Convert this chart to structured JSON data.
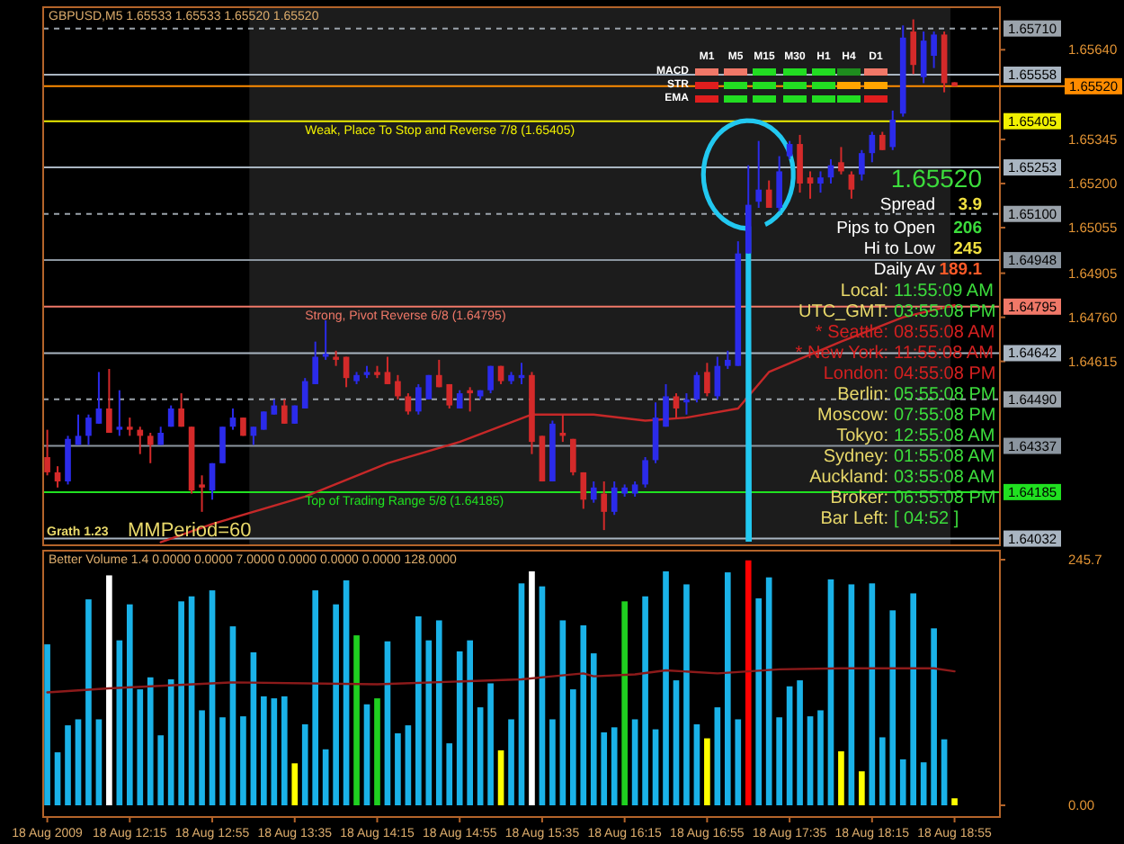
{
  "chart_data": [
    {
      "type": "candlestick",
      "title": "GBPUSD,M5 1.65533 1.65533 1.65520 1.65520",
      "x": [
        "2009-08-18T11:35",
        "2009-08-18T11:40",
        "2009-08-18T11:45",
        "2009-08-18T11:50",
        "2009-08-18T11:55",
        "2009-08-18T12:00",
        "2009-08-18T12:05",
        "2009-08-18T12:10",
        "2009-08-18T12:15",
        "2009-08-18T12:20",
        "2009-08-18T12:25",
        "2009-08-18T12:30",
        "2009-08-18T12:35",
        "2009-08-18T12:40",
        "2009-08-18T12:45",
        "2009-08-18T12:50",
        "2009-08-18T12:55",
        "2009-08-18T13:00",
        "2009-08-18T13:05",
        "2009-08-18T13:10",
        "2009-08-18T13:15",
        "2009-08-18T13:20",
        "2009-08-18T13:25",
        "2009-08-18T13:30",
        "2009-08-18T13:35",
        "2009-08-18T13:40",
        "2009-08-18T13:45",
        "2009-08-18T13:50",
        "2009-08-18T13:55",
        "2009-08-18T14:00",
        "2009-08-18T14:05",
        "2009-08-18T14:10",
        "2009-08-18T14:15",
        "2009-08-18T14:20",
        "2009-08-18T14:25",
        "2009-08-18T14:30",
        "2009-08-18T14:35",
        "2009-08-18T14:40",
        "2009-08-18T14:45",
        "2009-08-18T14:50",
        "2009-08-18T14:55",
        "2009-08-18T15:00",
        "2009-08-18T15:05",
        "2009-08-18T15:10",
        "2009-08-18T15:15",
        "2009-08-18T15:20",
        "2009-08-18T15:25",
        "2009-08-18T15:30",
        "2009-08-18T15:35",
        "2009-08-18T15:40",
        "2009-08-18T15:45",
        "2009-08-18T15:50",
        "2009-08-18T15:55",
        "2009-08-18T16:00",
        "2009-08-18T16:05",
        "2009-08-18T16:10",
        "2009-08-18T16:15",
        "2009-08-18T16:20",
        "2009-08-18T16:25",
        "2009-08-18T16:30",
        "2009-08-18T16:35",
        "2009-08-18T16:40",
        "2009-08-18T16:45",
        "2009-08-18T16:50",
        "2009-08-18T16:55",
        "2009-08-18T17:00",
        "2009-08-18T17:05",
        "2009-08-18T17:10",
        "2009-08-18T17:15",
        "2009-08-18T17:20",
        "2009-08-18T17:25",
        "2009-08-18T17:30",
        "2009-08-18T17:35",
        "2009-08-18T17:40",
        "2009-08-18T17:45",
        "2009-08-18T17:50",
        "2009-08-18T17:55",
        "2009-08-18T18:00",
        "2009-08-18T18:05",
        "2009-08-18T18:10",
        "2009-08-18T18:15",
        "2009-08-18T18:20",
        "2009-08-18T18:25",
        "2009-08-18T18:30",
        "2009-08-18T18:35",
        "2009-08-18T18:40",
        "2009-08-18T18:45",
        "2009-08-18T18:50",
        "2009-08-18T18:55"
      ],
      "ohlc": [
        [
          1.643,
          1.6439,
          1.6424,
          1.6425
        ],
        [
          1.6425,
          1.6427,
          1.642,
          1.6422
        ],
        [
          1.6422,
          1.6437,
          1.6421,
          1.6436
        ],
        [
          1.6434,
          1.6444,
          1.6434,
          1.6437
        ],
        [
          1.6437,
          1.6444,
          1.6434,
          1.6443
        ],
        [
          1.6441,
          1.6458,
          1.6441,
          1.6446
        ],
        [
          1.6446,
          1.6459,
          1.6438,
          1.6438
        ],
        [
          1.6439,
          1.6452,
          1.6437,
          1.644
        ],
        [
          1.644,
          1.6443,
          1.6437,
          1.6439
        ],
        [
          1.6439,
          1.644,
          1.6431,
          1.6437
        ],
        [
          1.6437,
          1.6438,
          1.6428,
          1.6434
        ],
        [
          1.6434,
          1.644,
          1.6434,
          1.6438
        ],
        [
          1.644,
          1.6447,
          1.644,
          1.6446
        ],
        [
          1.6446,
          1.6451,
          1.644,
          1.644
        ],
        [
          1.644,
          1.644,
          1.6418,
          1.6419
        ],
        [
          1.6421,
          1.6424,
          1.6412,
          1.642
        ],
        [
          1.6419,
          1.6428,
          1.6416,
          1.6428
        ],
        [
          1.6428,
          1.644,
          1.6428,
          1.644
        ],
        [
          1.644,
          1.6446,
          1.6439,
          1.6443
        ],
        [
          1.6443,
          1.6443,
          1.6437,
          1.6437
        ],
        [
          1.6437,
          1.644,
          1.6434,
          1.644
        ],
        [
          1.6439,
          1.6445,
          1.6439,
          1.6445
        ],
        [
          1.6444,
          1.6449,
          1.6444,
          1.6447
        ],
        [
          1.6447,
          1.6449,
          1.6441,
          1.6441
        ],
        [
          1.6441,
          1.6447,
          1.6441,
          1.6447
        ],
        [
          1.6446,
          1.6456,
          1.6446,
          1.6455
        ],
        [
          1.6454,
          1.6468,
          1.6454,
          1.6463
        ],
        [
          1.6463,
          1.6475,
          1.6462,
          1.6464
        ],
        [
          1.6463,
          1.6465,
          1.646,
          1.6462
        ],
        [
          1.6463,
          1.6463,
          1.6453,
          1.6456
        ],
        [
          1.6455,
          1.6458,
          1.6454,
          1.6457
        ],
        [
          1.6457,
          1.646,
          1.6456,
          1.6458
        ],
        [
          1.6458,
          1.646,
          1.6456,
          1.6457
        ],
        [
          1.6458,
          1.6463,
          1.6454,
          1.6454
        ],
        [
          1.6455,
          1.6457,
          1.6449,
          1.645
        ],
        [
          1.645,
          1.6451,
          1.6444,
          1.6445
        ],
        [
          1.6445,
          1.6454,
          1.6444,
          1.6453
        ],
        [
          1.6449,
          1.6457,
          1.6449,
          1.6457
        ],
        [
          1.6457,
          1.6462,
          1.6453,
          1.6453
        ],
        [
          1.6454,
          1.6454,
          1.6446,
          1.6447
        ],
        [
          1.6446,
          1.6452,
          1.6446,
          1.6451
        ],
        [
          1.6452,
          1.6453,
          1.6445,
          1.6451
        ],
        [
          1.645,
          1.6452,
          1.6449,
          1.6452
        ],
        [
          1.6452,
          1.646,
          1.6451,
          1.646
        ],
        [
          1.646,
          1.646,
          1.6454,
          1.6455
        ],
        [
          1.6455,
          1.6458,
          1.6454,
          1.6457
        ],
        [
          1.6456,
          1.6461,
          1.6454,
          1.6457
        ],
        [
          1.6457,
          1.6458,
          1.6431,
          1.6435
        ],
        [
          1.6437,
          1.6437,
          1.6422,
          1.6422
        ],
        [
          1.6422,
          1.6442,
          1.6422,
          1.6441
        ],
        [
          1.6438,
          1.6444,
          1.6435,
          1.6437
        ],
        [
          1.6436,
          1.6436,
          1.6424,
          1.6425
        ],
        [
          1.6425,
          1.6425,
          1.6413,
          1.6416
        ],
        [
          1.6416,
          1.6422,
          1.6415,
          1.642
        ],
        [
          1.6418,
          1.6422,
          1.6406,
          1.6412
        ],
        [
          1.6412,
          1.6422,
          1.6411,
          1.642
        ],
        [
          1.6418,
          1.6421,
          1.6417,
          1.642
        ],
        [
          1.6418,
          1.6422,
          1.6417,
          1.6421
        ],
        [
          1.6421,
          1.643,
          1.642,
          1.6429
        ],
        [
          1.6429,
          1.6448,
          1.6428,
          1.6443
        ],
        [
          1.644,
          1.6454,
          1.644,
          1.645
        ],
        [
          1.645,
          1.6451,
          1.6443,
          1.6446
        ],
        [
          1.6448,
          1.6451,
          1.6444,
          1.6449
        ],
        [
          1.6449,
          1.6458,
          1.6448,
          1.6457
        ],
        [
          1.6458,
          1.6461,
          1.645,
          1.6451
        ],
        [
          1.645,
          1.6463,
          1.6449,
          1.646
        ],
        [
          1.646,
          1.6465,
          1.6459,
          1.6462
        ],
        [
          1.646,
          1.6501,
          1.646,
          1.6497
        ],
        [
          1.6497,
          1.6526,
          1.6497,
          1.6513
        ],
        [
          1.6514,
          1.6534,
          1.6512,
          1.6518
        ],
        [
          1.6518,
          1.6521,
          1.6512,
          1.6512
        ],
        [
          1.6512,
          1.6529,
          1.6511,
          1.6524
        ],
        [
          1.6529,
          1.6534,
          1.6528,
          1.6533
        ],
        [
          1.6533,
          1.6536,
          1.6517,
          1.652
        ],
        [
          1.6522,
          1.6524,
          1.6515,
          1.652
        ],
        [
          1.652,
          1.6524,
          1.6517,
          1.6522
        ],
        [
          1.6522,
          1.6528,
          1.652,
          1.6526
        ],
        [
          1.6527,
          1.6532,
          1.6523,
          1.6524
        ],
        [
          1.6523,
          1.6524,
          1.6515,
          1.6518
        ],
        [
          1.6523,
          1.6531,
          1.6521,
          1.653
        ],
        [
          1.653,
          1.6537,
          1.6527,
          1.6536
        ],
        [
          1.6536,
          1.6537,
          1.6531,
          1.6531
        ],
        [
          1.6532,
          1.6544,
          1.6531,
          1.6541
        ],
        [
          1.6543,
          1.6572,
          1.6542,
          1.6568
        ],
        [
          1.657,
          1.6574,
          1.6556,
          1.6559
        ],
        [
          1.6555,
          1.657,
          1.6553,
          1.6567
        ],
        [
          1.6562,
          1.657,
          1.6558,
          1.6569
        ],
        [
          1.6569,
          1.657,
          1.655,
          1.6553
        ],
        [
          1.65533,
          1.65533,
          1.6552,
          1.6552
        ]
      ],
      "series": [
        {
          "type": "line",
          "color": "#c62828",
          "x": [
            "2009-08-18T12:30",
            "2009-08-18T12:55",
            "2009-08-18T13:40",
            "2009-08-18T14:20",
            "2009-08-18T14:55",
            "2009-08-18T15:30",
            "2009-08-18T16:00",
            "2009-08-18T16:25",
            "2009-08-18T16:45",
            "2009-08-18T17:10",
            "2009-08-18T17:25",
            "2009-08-18T18:00",
            "2009-08-18T18:30",
            "2009-08-18T18:55"
          ],
          "values": [
            1.6402,
            1.6408,
            1.6417,
            1.6428,
            1.6435,
            1.6444,
            1.6444,
            1.6442,
            1.6443,
            1.6446,
            1.6458,
            1.6468,
            1.6476,
            1.648
          ]
        }
      ],
      "xlim": [
        "2009-08-18T11:33",
        "2009-08-18T19:17"
      ],
      "ylim": [
        1.6401,
        1.6578
      ],
      "yticks": [
        {
          "value": 1.6564,
          "label": "1.65640"
        },
        1.65345,
        {
          "value": 1.652,
          "label": "1.65200"
        },
        1.65055,
        1.64905,
        {
          "value": 1.6476,
          "label": "1.64760"
        },
        1.64615
      ],
      "ref_lines": [
        {
          "axis": "y",
          "value": 1.6571,
          "label": "1.65710",
          "color": "#9ba3ab",
          "line_style": "dashed"
        },
        {
          "axis": "y",
          "value": 1.65558,
          "label": "1.65558",
          "color": "#a9b5c1"
        },
        {
          "axis": "y",
          "value": 1.6552,
          "label": "1.65520",
          "color": "#ff8c00"
        },
        {
          "axis": "y",
          "value": 1.65405,
          "label": "1.65405",
          "color": "#f0f000"
        },
        {
          "axis": "y",
          "value": 1.65253,
          "label": "1.65253",
          "color": "#a9b5c1"
        },
        {
          "axis": "y",
          "value": 1.651,
          "label": "1.65100",
          "color": "#9ba3ab",
          "line_style": "dashed"
        },
        {
          "axis": "y",
          "value": 1.64948,
          "label": "1.64948",
          "color": "#8b959f"
        },
        {
          "axis": "y",
          "value": 1.64795,
          "label": "1.64795",
          "color": "#f07868"
        },
        {
          "axis": "y",
          "value": 1.64642,
          "label": "1.64642",
          "color": "#a9b5c1"
        },
        {
          "axis": "y",
          "value": 1.6449,
          "label": "1.64490",
          "color": "#9ba3ab",
          "line_style": "dashed"
        },
        {
          "axis": "y",
          "value": 1.64337,
          "label": "1.64337",
          "color": "#8b959f"
        },
        {
          "axis": "y",
          "value": 1.64185,
          "label": "1.64185",
          "color": "#20e020"
        },
        {
          "axis": "y",
          "value": 1.64032,
          "label": "1.64032",
          "color": "#a9b5c1"
        }
      ],
      "bands": [
        {
          "axis": "x",
          "from": "2009-08-18T13:13",
          "to": "2009-08-18T18:53",
          "color": "#1c1c1c"
        }
      ],
      "annotations": [
        "Grath 1.23",
        "MMPeriod=60",
        "1.65520",
        "Spread",
        "3.9",
        "Pips to Open",
        "206",
        "Hi to Low",
        "245",
        "Daily Av",
        "189.1",
        "Local:",
        "11:55:09 AM",
        "UTC_GMT:",
        "03:55:08 PM",
        "* Seattle:",
        "08:55:08 AM",
        "* New York:",
        "11:55:08 AM",
        "London:",
        "04:55:08 PM",
        "Berlin:",
        "05:55:08 PM",
        "Moscow:",
        "07:55:08 PM",
        "Tokyo:",
        "12:55:08 AM",
        "Sydney:",
        "01:55:08 AM",
        "Auckland:",
        "03:55:08 AM",
        "Broker:",
        "06:55:08 PM",
        "Bar Left:",
        "[ 04:52 ]",
        "M1",
        "M5",
        "M15",
        "M30",
        "H1",
        "H4",
        "D1",
        "MACD",
        "STR",
        "EMA",
        {
          "text": "Weak, Place To Stop and Reverse 7/8 (1.65405)",
          "x": "2009-08-18T13:40",
          "y": 1.65405
        },
        {
          "text": "Strong, Pivot Reverse 6/8 (1.64795)",
          "x": "2009-08-18T13:40",
          "y": 1.64795
        },
        {
          "text": "Top of Trading Range 5/8 (1.64185)",
          "x": "2009-08-18T13:40",
          "y": 1.64185
        }
      ],
      "tick_labels": "y"
    },
    {
      "type": "bar",
      "title": "Better Volume 1.4 0.0000 0.0000 7.0000 0.0000 0.0000 0.0000 128.0000",
      "x": [
        "2009-08-18T11:35",
        "2009-08-18T11:40",
        "2009-08-18T11:45",
        "2009-08-18T11:50",
        "2009-08-18T11:55",
        "2009-08-18T12:00",
        "2009-08-18T12:05",
        "2009-08-18T12:10",
        "2009-08-18T12:15",
        "2009-08-18T12:20",
        "2009-08-18T12:25",
        "2009-08-18T12:30",
        "2009-08-18T12:35",
        "2009-08-18T12:40",
        "2009-08-18T12:45",
        "2009-08-18T12:50",
        "2009-08-18T12:55",
        "2009-08-18T13:00",
        "2009-08-18T13:05",
        "2009-08-18T13:10",
        "2009-08-18T13:15",
        "2009-08-18T13:20",
        "2009-08-18T13:25",
        "2009-08-18T13:30",
        "2009-08-18T13:35",
        "2009-08-18T13:40",
        "2009-08-18T13:45",
        "2009-08-18T13:50",
        "2009-08-18T13:55",
        "2009-08-18T14:00",
        "2009-08-18T14:05",
        "2009-08-18T14:10",
        "2009-08-18T14:15",
        "2009-08-18T14:20",
        "2009-08-18T14:25",
        "2009-08-18T14:30",
        "2009-08-18T14:35",
        "2009-08-18T14:40",
        "2009-08-18T14:45",
        "2009-08-18T14:50",
        "2009-08-18T14:55",
        "2009-08-18T15:00",
        "2009-08-18T15:05",
        "2009-08-18T15:10",
        "2009-08-18T15:15",
        "2009-08-18T15:20",
        "2009-08-18T15:25",
        "2009-08-18T15:30",
        "2009-08-18T15:35",
        "2009-08-18T15:40",
        "2009-08-18T15:45",
        "2009-08-18T15:50",
        "2009-08-18T15:55",
        "2009-08-18T16:00",
        "2009-08-18T16:05",
        "2009-08-18T16:10",
        "2009-08-18T16:15",
        "2009-08-18T16:20",
        "2009-08-18T16:25",
        "2009-08-18T16:30",
        "2009-08-18T16:35",
        "2009-08-18T16:40",
        "2009-08-18T16:45",
        "2009-08-18T16:50",
        "2009-08-18T16:55",
        "2009-08-18T17:00",
        "2009-08-18T17:05",
        "2009-08-18T17:10",
        "2009-08-18T17:15",
        "2009-08-18T17:20",
        "2009-08-18T17:25",
        "2009-08-18T17:30",
        "2009-08-18T17:35",
        "2009-08-18T17:40",
        "2009-08-18T17:45",
        "2009-08-18T17:50",
        "2009-08-18T17:55",
        "2009-08-18T18:00",
        "2009-08-18T18:05",
        "2009-08-18T18:10",
        "2009-08-18T18:15",
        "2009-08-18T18:20",
        "2009-08-18T18:25",
        "2009-08-18T18:30",
        "2009-08-18T18:35",
        "2009-08-18T18:40",
        "2009-08-18T18:45",
        "2009-08-18T18:50",
        "2009-08-18T18:55"
      ],
      "series": [
        {
          "type": "bar",
          "values": [
            161,
            53,
            80,
            86,
            206,
            86,
            230,
            165,
            201,
            116,
            128,
            70,
            126,
            204,
            209,
            95,
            215,
            88,
            179,
            89,
            153,
            109,
            107,
            109,
            42,
            81,
            215,
            56,
            201,
            225,
            170,
            101,
            107,
            164,
            72,
            80,
            189,
            165,
            185,
            62,
            154,
            165,
            98,
            122,
            55,
            86,
            222,
            234,
            219,
            86,
            185,
            116,
            180,
            152,
            73,
            78,
            204,
            86,
            209,
            76,
            234,
            125,
            221,
            81,
            67,
            98,
            233,
            86,
            245,
            207,
            228,
            88,
            119,
            125,
            89,
            95,
            226,
            54,
            221,
            34,
            222,
            68,
            195,
            46,
            212,
            43,
            177,
            66,
            7
          ],
          "colors": [
            "#1ab2e8",
            "#1ab2e8",
            "#1ab2e8",
            "#1ab2e8",
            "#1ab2e8",
            "#1ab2e8",
            "#ffffff",
            "#1ab2e8",
            "#1ab2e8",
            "#1ab2e8",
            "#1ab2e8",
            "#1ab2e8",
            "#1ab2e8",
            "#1ab2e8",
            "#1ab2e8",
            "#1ab2e8",
            "#1ab2e8",
            "#1ab2e8",
            "#1ab2e8",
            "#1ab2e8",
            "#1ab2e8",
            "#1ab2e8",
            "#1ab2e8",
            "#1ab2e8",
            "#ffff00",
            "#1ab2e8",
            "#1ab2e8",
            "#1ab2e8",
            "#1ab2e8",
            "#1ab2e8",
            "#20d020",
            "#1ab2e8",
            "#20d020",
            "#1ab2e8",
            "#1ab2e8",
            "#1ab2e8",
            "#1ab2e8",
            "#1ab2e8",
            "#1ab2e8",
            "#1ab2e8",
            "#1ab2e8",
            "#1ab2e8",
            "#1ab2e8",
            "#1ab2e8",
            "#ffff00",
            "#1ab2e8",
            "#1ab2e8",
            "#ffffff",
            "#1ab2e8",
            "#1ab2e8",
            "#1ab2e8",
            "#1ab2e8",
            "#1ab2e8",
            "#1ab2e8",
            "#1ab2e8",
            "#1ab2e8",
            "#20d020",
            "#1ab2e8",
            "#1ab2e8",
            "#1ab2e8",
            "#1ab2e8",
            "#1ab2e8",
            "#1ab2e8",
            "#1ab2e8",
            "#ffff00",
            "#1ab2e8",
            "#1ab2e8",
            "#1ab2e8",
            "#ff0000",
            "#1ab2e8",
            "#1ab2e8",
            "#1ab2e8",
            "#1ab2e8",
            "#1ab2e8",
            "#1ab2e8",
            "#1ab2e8",
            "#1ab2e8",
            "#ffff00",
            "#1ab2e8",
            "#ffff00",
            "#1ab2e8",
            "#1ab2e8",
            "#1ab2e8",
            "#1ab2e8",
            "#1ab2e8",
            "#1ab2e8",
            "#1ab2e8",
            "#1ab2e8",
            "#ffff00"
          ]
        },
        {
          "type": "line",
          "color": "#8c1a1a",
          "x": [
            "2009-08-18T11:35",
            "2009-08-18T12:05",
            "2009-08-18T13:05",
            "2009-08-18T14:15",
            "2009-08-18T15:25",
            "2009-08-18T15:40",
            "2009-08-18T15:55",
            "2009-08-18T16:00",
            "2009-08-18T16:20",
            "2009-08-18T16:35",
            "2009-08-18T17:00",
            "2009-08-18T17:30",
            "2009-08-18T18:00",
            "2009-08-18T18:20",
            "2009-08-18T18:45",
            "2009-08-18T18:55"
          ],
          "values": [
            113,
            117,
            123,
            121,
            126,
            129,
            132,
            129,
            131,
            135,
            132,
            136,
            137,
            137,
            137,
            134
          ]
        }
      ],
      "xlim": [
        "2009-08-18T11:33",
        "2009-08-18T19:17"
      ],
      "xticks": [
        {
          "value": "2009-08-18T11:35",
          "label": "18 Aug 2009"
        },
        {
          "value": "2009-08-18T12:15",
          "label": "18 Aug 12:15"
        },
        {
          "value": "2009-08-18T12:55",
          "label": "18 Aug 12:55"
        },
        {
          "value": "2009-08-18T13:35",
          "label": "18 Aug 13:35"
        },
        {
          "value": "2009-08-18T14:15",
          "label": "18 Aug 14:15"
        },
        {
          "value": "2009-08-18T14:55",
          "label": "18 Aug 14:55"
        },
        {
          "value": "2009-08-18T15:35",
          "label": "18 Aug 15:35"
        },
        {
          "value": "2009-08-18T16:15",
          "label": "18 Aug 16:15"
        },
        {
          "value": "2009-08-18T16:55",
          "label": "18 Aug 16:55"
        },
        {
          "value": "2009-08-18T17:35",
          "label": "18 Aug 17:35"
        },
        {
          "value": "2009-08-18T18:15",
          "label": "18 Aug 18:15"
        },
        {
          "value": "2009-08-18T18:55",
          "label": "18 Aug 18:55"
        }
      ],
      "ylim": [
        -11.7,
        245.7
      ],
      "yticks": [
        {
          "value": 0,
          "label": "0.00"
        },
        245.7
      ]
    }
  ]
}
